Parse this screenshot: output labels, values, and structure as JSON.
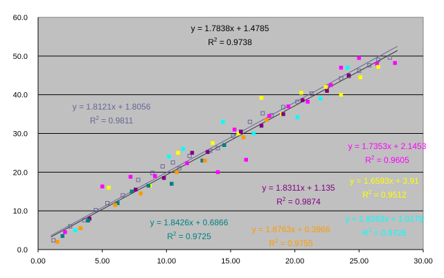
{
  "chart_data": {
    "type": "scatter",
    "title": "",
    "xlabel": "",
    "ylabel": "",
    "xlim": [
      0,
      30
    ],
    "ylim": [
      0,
      60
    ],
    "x_ticks": [
      "0.00",
      "5.00",
      "10.00",
      "15.00",
      "20.00",
      "25.00",
      "30.00"
    ],
    "y_ticks": [
      "0.0",
      "10.0",
      "20.0",
      "30.0",
      "40.0",
      "50.0",
      "60.0"
    ],
    "grid": "horizontal",
    "plot_background": "#c0c0c0",
    "series": [
      {
        "color": "#666699",
        "marker": "open-square",
        "x": [
          1.2,
          2.5,
          3.6,
          4.5,
          5.4,
          6.6,
          7.8,
          8.9,
          9.7,
          10.5,
          11.0,
          11.8,
          13.4,
          14.0,
          15.2,
          16.5,
          17.5,
          18.2,
          19.1,
          20.2,
          21.3,
          22.5,
          23.6,
          24.2,
          25.0,
          25.8,
          26.5,
          27.4
        ],
        "y": [
          2.4,
          6.0,
          7.6,
          10.2,
          12.0,
          14.0,
          18.0,
          19.8,
          21.5,
          22.5,
          21.0,
          24.2,
          25.5,
          26.2,
          29.4,
          33.0,
          35.2,
          34.7,
          36.8,
          38.2,
          40.3,
          42.0,
          44.2,
          44.8,
          46.2,
          47.6,
          49.0,
          49.6
        ]
      },
      {
        "color": "#ff00ff",
        "marker": "filled-square",
        "x": [
          2.1,
          5.0,
          7.2,
          9.1,
          11.6,
          14.0,
          15.3,
          16.2,
          18.0,
          19.5,
          21.0,
          22.8,
          23.6,
          25.0,
          26.4,
          27.8
        ],
        "y": [
          4.5,
          16.3,
          18.8,
          19.0,
          22.3,
          20.0,
          31.0,
          23.2,
          34.5,
          37.0,
          38.2,
          42.5,
          47.0,
          49.5,
          48.0,
          48.2
        ]
      },
      {
        "color": "#ffff00",
        "marker": "filled-square",
        "x": [
          5.5,
          8.7,
          10.9,
          13.6,
          15.6,
          17.4,
          19.0,
          20.5,
          22.4,
          23.6,
          25.1,
          26.5
        ],
        "y": [
          16.0,
          16.5,
          25.0,
          27.5,
          30.0,
          39.2,
          35.0,
          40.5,
          42.0,
          40.0,
          44.5,
          47.2
        ]
      },
      {
        "color": "#00ffff",
        "marker": "filled-square",
        "x": [
          2.9,
          10.2,
          11.3,
          14.4,
          16.8,
          20.2,
          22.0,
          24.1
        ],
        "y": [
          5.0,
          24.0,
          26.0,
          33.0,
          30.0,
          34.2,
          39.0,
          47.0
        ]
      },
      {
        "color": "#800080",
        "marker": "filled-square",
        "x": [
          4.0,
          7.6,
          9.8,
          12.0,
          13.2,
          15.8,
          17.4,
          19.1,
          20.6,
          22.5,
          24.2
        ],
        "y": [
          8.0,
          15.5,
          18.5,
          25.0,
          25.2,
          30.5,
          32.0,
          35.0,
          38.6,
          41.0,
          45.0
        ]
      },
      {
        "color": "#008080",
        "marker": "filled-square",
        "x": [
          1.9,
          3.9,
          6.2,
          7.3,
          8.6,
          10.4,
          12.8,
          14.5
        ],
        "y": [
          3.5,
          7.5,
          12.0,
          15.0,
          16.5,
          17.0,
          23.0,
          27.0
        ]
      },
      {
        "color": "#ff9900",
        "marker": "filled-square",
        "x": [
          1.5,
          3.3,
          6.0,
          8.0,
          10.8,
          13.0,
          16.0,
          17.8
        ],
        "y": [
          2.0,
          5.5,
          11.5,
          14.5,
          20.0,
          23.0,
          29.0,
          33.5
        ]
      }
    ],
    "trendlines": [
      {
        "color": "#333333",
        "slope": 1.7838,
        "intercept": 1.4785,
        "x": [
          1.0,
          28.0
        ]
      },
      {
        "color": "#666699",
        "slope": 1.8121,
        "intercept": 1.8056,
        "x": [
          1.0,
          28.0
        ]
      }
    ],
    "annotations": [
      {
        "line1": "y = 1.7838x + 1.4785",
        "r2_value": "0.9738",
        "color": "#000000"
      },
      {
        "line1": "y = 1.8121x + 1.8056",
        "r2_value": "0.9811",
        "color": "#666699"
      },
      {
        "line1": "y = 1.7353x + 2.1453",
        "r2_value": "0.9605",
        "color": "#ff00ff"
      },
      {
        "line1": "y = 1.6593x + 3.91",
        "r2_value": "0.9512",
        "color": "#ffff00"
      },
      {
        "line1": "y = 1.8311x + 1.135",
        "r2_value": "0.9874",
        "color": "#800080"
      },
      {
        "line1": "y = 1.8426x + 0.6866",
        "r2_value": "0.9725",
        "color": "#008080"
      },
      {
        "line1": "y = 1.8763x + 0.3966",
        "r2_value": "0.9755",
        "color": "#ff9900"
      },
      {
        "line1": "y = 1.8283x + 1.0178",
        "r2_value": "0.9726",
        "color": "#00ffff"
      }
    ],
    "r2_prefix": "R",
    "r2_sup": "2",
    "r2_sep": " = "
  }
}
